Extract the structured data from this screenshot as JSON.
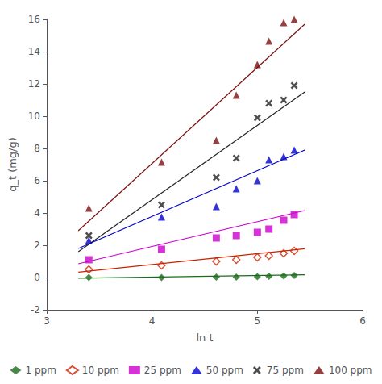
{
  "chart_data": {
    "type": "scatter",
    "title": "",
    "xlabel": "ln t",
    "ylabel": "q_t (mg/g)",
    "xlim": [
      3,
      6
    ],
    "ylim": [
      -2,
      16
    ],
    "xticks": [
      3,
      4,
      5,
      6
    ],
    "yticks": [
      -2,
      0,
      2,
      4,
      6,
      8,
      10,
      12,
      14,
      16
    ],
    "grid": false,
    "legend": "bottom",
    "series": [
      {
        "name": "1 ppm",
        "color": "#1a6b1a",
        "marker": "diamond",
        "x": [
          3.4,
          4.09,
          4.61,
          4.8,
          5.0,
          5.11,
          5.25,
          5.35
        ],
        "values": [
          0.0,
          0.0,
          0.02,
          0.03,
          0.05,
          0.07,
          0.1,
          0.12
        ],
        "fit_x": [
          3.3,
          5.45
        ],
        "fit_y": [
          -0.04,
          0.17
        ]
      },
      {
        "name": "10 ppm",
        "color": "#cc2200",
        "marker": "open diamond",
        "x": [
          3.4,
          4.09,
          4.61,
          4.8,
          5.0,
          5.11,
          5.25,
          5.35
        ],
        "values": [
          0.5,
          0.75,
          1.0,
          1.1,
          1.25,
          1.35,
          1.5,
          1.65
        ],
        "fit_x": [
          3.3,
          5.45
        ],
        "fit_y": [
          0.33,
          1.78
        ]
      },
      {
        "name": "25 ppm",
        "color": "#cc00cc",
        "marker": "square",
        "x": [
          3.4,
          4.09,
          4.61,
          4.8,
          5.0,
          5.11,
          5.25,
          5.35
        ],
        "values": [
          1.1,
          1.75,
          2.45,
          2.6,
          2.8,
          3.0,
          3.55,
          3.9
        ],
        "fit_x": [
          3.3,
          5.45
        ],
        "fit_y": [
          0.85,
          4.15
        ]
      },
      {
        "name": "50 ppm",
        "color": "#0000cc",
        "marker": "triangle",
        "x": [
          3.4,
          4.09,
          4.61,
          4.8,
          5.0,
          5.11,
          5.25,
          5.35
        ],
        "values": [
          2.3,
          3.75,
          4.4,
          5.5,
          6.0,
          7.3,
          7.5,
          7.9
        ],
        "fit_x": [
          3.3,
          5.45
        ],
        "fit_y": [
          1.8,
          7.9
        ]
      },
      {
        "name": "75 ppm",
        "color": "#222222",
        "marker": "x",
        "x": [
          3.4,
          4.09,
          4.61,
          4.8,
          5.0,
          5.11,
          5.25,
          5.35
        ],
        "values": [
          2.6,
          4.5,
          6.2,
          7.4,
          9.9,
          10.8,
          11.0,
          11.9
        ],
        "fit_x": [
          3.3,
          5.45
        ],
        "fit_y": [
          1.6,
          11.5
        ]
      },
      {
        "name": "100 ppm",
        "color": "#7b1010",
        "marker": "triangle",
        "x": [
          3.4,
          4.09,
          4.61,
          4.8,
          5.0,
          5.11,
          5.25,
          5.35
        ],
        "values": [
          4.3,
          7.15,
          8.5,
          11.3,
          13.2,
          14.65,
          15.8,
          16.0
        ],
        "fit_x": [
          3.3,
          5.45
        ],
        "fit_y": [
          2.9,
          15.7
        ]
      }
    ]
  }
}
